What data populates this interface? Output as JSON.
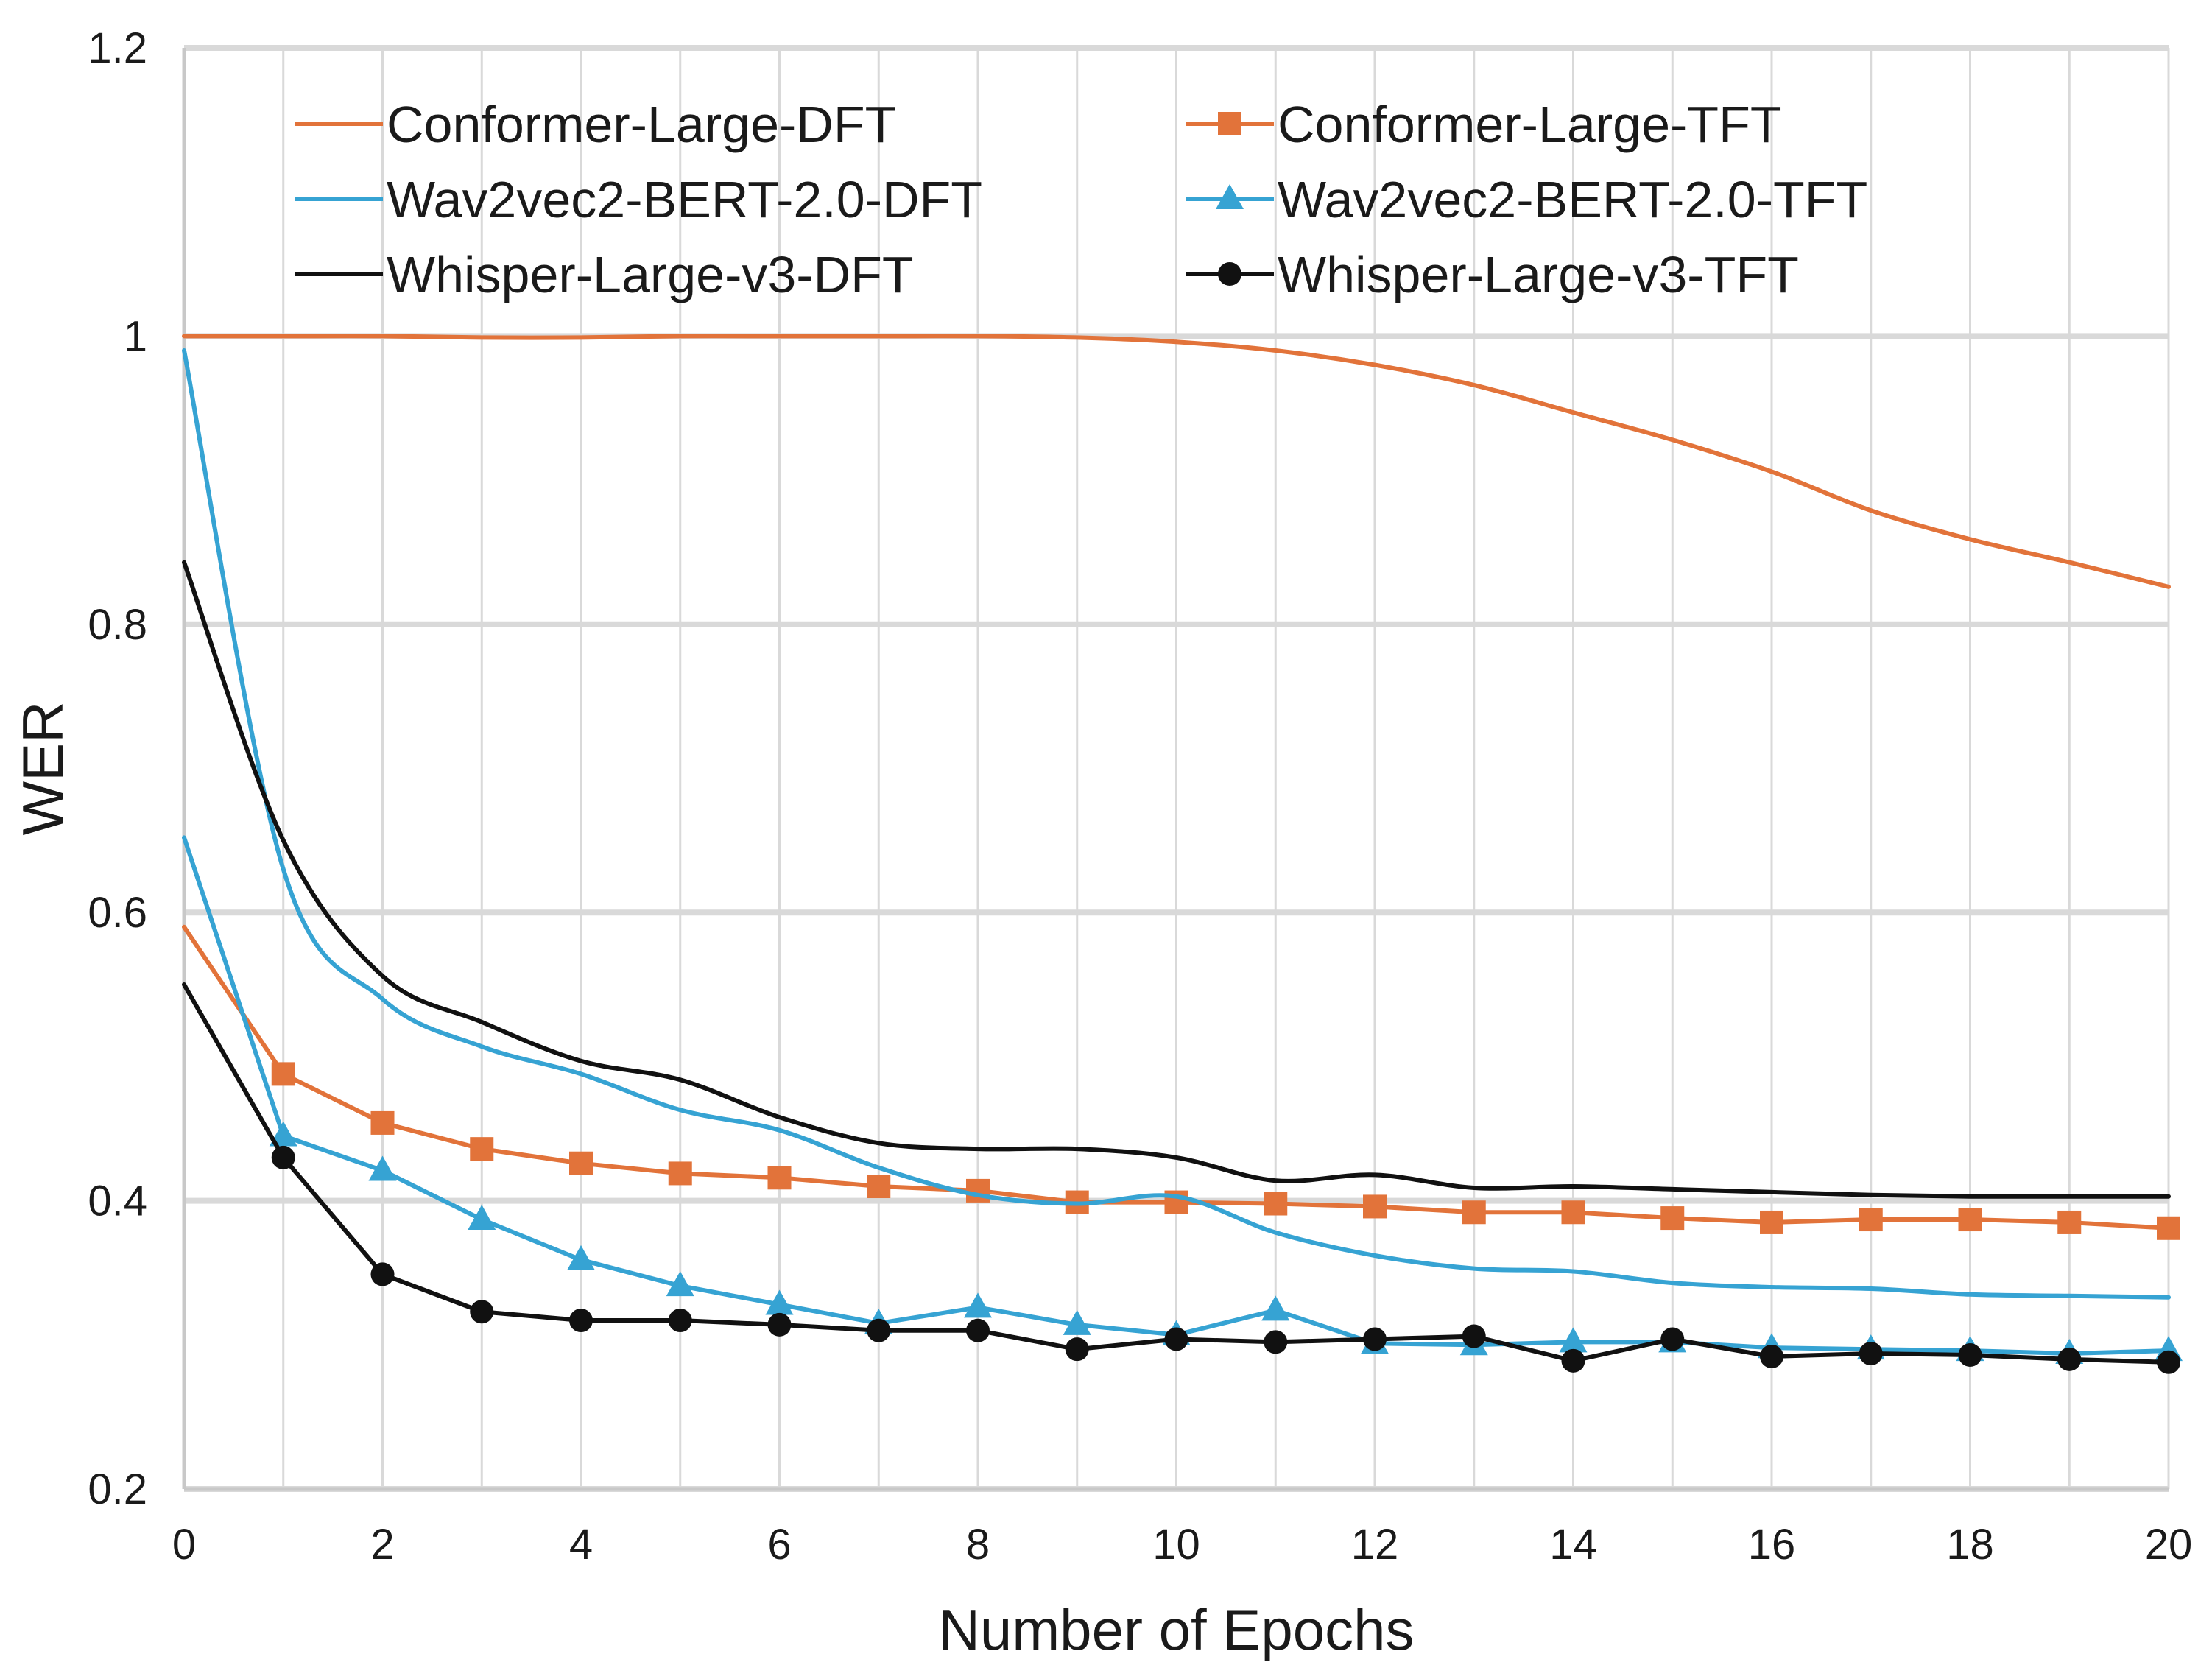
{
  "chart_data": {
    "type": "line",
    "title": "",
    "xlabel": "Number of Epochs",
    "ylabel": "WER",
    "xlim": [
      0,
      20
    ],
    "ylim": [
      0.2,
      1.2
    ],
    "xticks": [
      0,
      2,
      4,
      6,
      8,
      10,
      12,
      14,
      16,
      18,
      20
    ],
    "xtick_labels": [
      "0",
      "2",
      "4",
      "6",
      "8",
      "10",
      "12",
      "14",
      "16",
      "18",
      "20"
    ],
    "yticks": [
      0.2,
      0.4,
      0.6,
      0.8,
      1.0,
      1.2
    ],
    "ytick_labels": [
      "0.2",
      "0.4",
      "0.6",
      "0.8",
      "1",
      "1.2"
    ],
    "grid": true,
    "legend_position": "top",
    "series": [
      {
        "name": "Conformer-Large-DFT",
        "color": "#E2733A",
        "marker": "none",
        "x": [
          0,
          1,
          2,
          3,
          4,
          5,
          6,
          7,
          8,
          9,
          10,
          11,
          12,
          13,
          14,
          15,
          16,
          17,
          18,
          19,
          20
        ],
        "values": [
          1.0,
          1.0,
          1.0,
          0.999,
          0.999,
          1.0,
          1.0,
          1.0,
          1.0,
          0.999,
          0.996,
          0.99,
          0.98,
          0.966,
          0.947,
          0.928,
          0.906,
          0.879,
          0.859,
          0.843,
          0.826
        ]
      },
      {
        "name": "Conformer-Large-TFT",
        "color": "#E2733A",
        "marker": "square",
        "x": [
          0,
          1,
          2,
          3,
          4,
          5,
          6,
          7,
          8,
          9,
          10,
          11,
          12,
          13,
          14,
          15,
          16,
          17,
          18,
          19,
          20
        ],
        "values": [
          0.59,
          0.488,
          0.454,
          0.436,
          0.426,
          0.419,
          0.416,
          0.41,
          0.407,
          0.399,
          0.399,
          0.398,
          0.396,
          0.392,
          0.392,
          0.388,
          0.385,
          0.387,
          0.387,
          0.385,
          0.381
        ]
      },
      {
        "name": "Wav2vec2-BERT-2.0-DFT",
        "color": "#36A3D3",
        "marker": "none",
        "x": [
          0,
          1,
          2,
          3,
          4,
          5,
          6,
          7,
          8,
          9,
          10,
          11,
          12,
          13,
          14,
          15,
          16,
          17,
          18,
          19,
          20
        ],
        "values": [
          0.99,
          0.63,
          0.54,
          0.507,
          0.488,
          0.463,
          0.449,
          0.423,
          0.404,
          0.398,
          0.403,
          0.378,
          0.362,
          0.353,
          0.351,
          0.343,
          0.34,
          0.339,
          0.335,
          0.334,
          0.333
        ]
      },
      {
        "name": "Wav2vec2-BERT-2.0-TFT",
        "color": "#36A3D3",
        "marker": "triangle",
        "x": [
          0,
          1,
          2,
          3,
          4,
          5,
          6,
          7,
          8,
          9,
          10,
          11,
          12,
          13,
          14,
          15,
          16,
          17,
          18,
          19,
          20
        ],
        "values": [
          0.652,
          0.445,
          0.421,
          0.387,
          0.359,
          0.341,
          0.328,
          0.315,
          0.326,
          0.314,
          0.307,
          0.324,
          0.301,
          0.3,
          0.302,
          0.302,
          0.298,
          0.297,
          0.296,
          0.294,
          0.296
        ]
      },
      {
        "name": "Whisper-Large-v3-DFT",
        "color": "#111111",
        "marker": "none",
        "x": [
          0,
          1,
          2,
          3,
          4,
          5,
          6,
          7,
          8,
          9,
          10,
          11,
          12,
          13,
          14,
          15,
          16,
          17,
          18,
          19,
          20
        ],
        "values": [
          0.843,
          0.65,
          0.556,
          0.524,
          0.497,
          0.484,
          0.458,
          0.44,
          0.436,
          0.436,
          0.43,
          0.414,
          0.418,
          0.409,
          0.41,
          0.408,
          0.406,
          0.404,
          0.403,
          0.403,
          0.403
        ]
      },
      {
        "name": "Whisper-Large-v3-TFT",
        "color": "#111111",
        "marker": "circle",
        "x": [
          0,
          1,
          2,
          3,
          4,
          5,
          6,
          7,
          8,
          9,
          10,
          11,
          12,
          13,
          14,
          15,
          16,
          17,
          18,
          19,
          20
        ],
        "values": [
          0.55,
          0.43,
          0.349,
          0.323,
          0.317,
          0.317,
          0.314,
          0.31,
          0.31,
          0.297,
          0.304,
          0.302,
          0.304,
          0.306,
          0.289,
          0.304,
          0.292,
          0.294,
          0.293,
          0.29,
          0.288
        ]
      }
    ]
  }
}
